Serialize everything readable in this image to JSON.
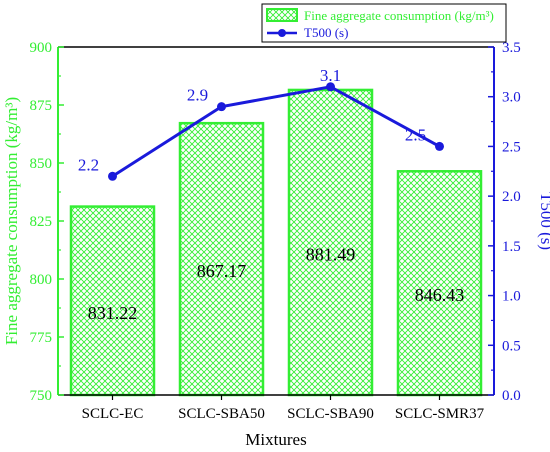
{
  "chart_data": {
    "type": "bar+line",
    "categories": [
      "SCLC-EC",
      "SCLC-SBA50",
      "SCLC-SBA90",
      "SCLC-SMR37"
    ],
    "xlabel": "Mixtures",
    "series": [
      {
        "name": "Fine aggregate consumption (kg/m³)",
        "type": "bar",
        "axis": "left",
        "values": [
          831.22,
          867.17,
          881.49,
          846.43
        ],
        "labels": [
          "831.22",
          "867.17",
          "881.49",
          "846.43"
        ],
        "color": "#33ee33",
        "pattern": "crosshatch"
      },
      {
        "name": "T500 (s)",
        "type": "line",
        "axis": "right",
        "values": [
          2.2,
          2.9,
          3.1,
          2.5
        ],
        "labels": [
          "2.2",
          "2.9",
          "3.1",
          "2.5"
        ],
        "color": "#1a1adb",
        "marker": "circle"
      }
    ],
    "y_left": {
      "label": "Fine aggregate consumption (kg/m³)",
      "lim": [
        750,
        900
      ],
      "ticks": [
        "750",
        "775",
        "800",
        "825",
        "850",
        "875",
        "900"
      ],
      "color": "#33ee33"
    },
    "y_right": {
      "label": "T500 (s)",
      "lim": [
        0,
        3.5
      ],
      "ticks": [
        "0.0",
        "0.5",
        "1.0",
        "1.5",
        "2.0",
        "2.5",
        "3.0",
        "3.5"
      ],
      "color": "#1a1adb"
    },
    "legend_position": "top-right",
    "grid": false
  }
}
